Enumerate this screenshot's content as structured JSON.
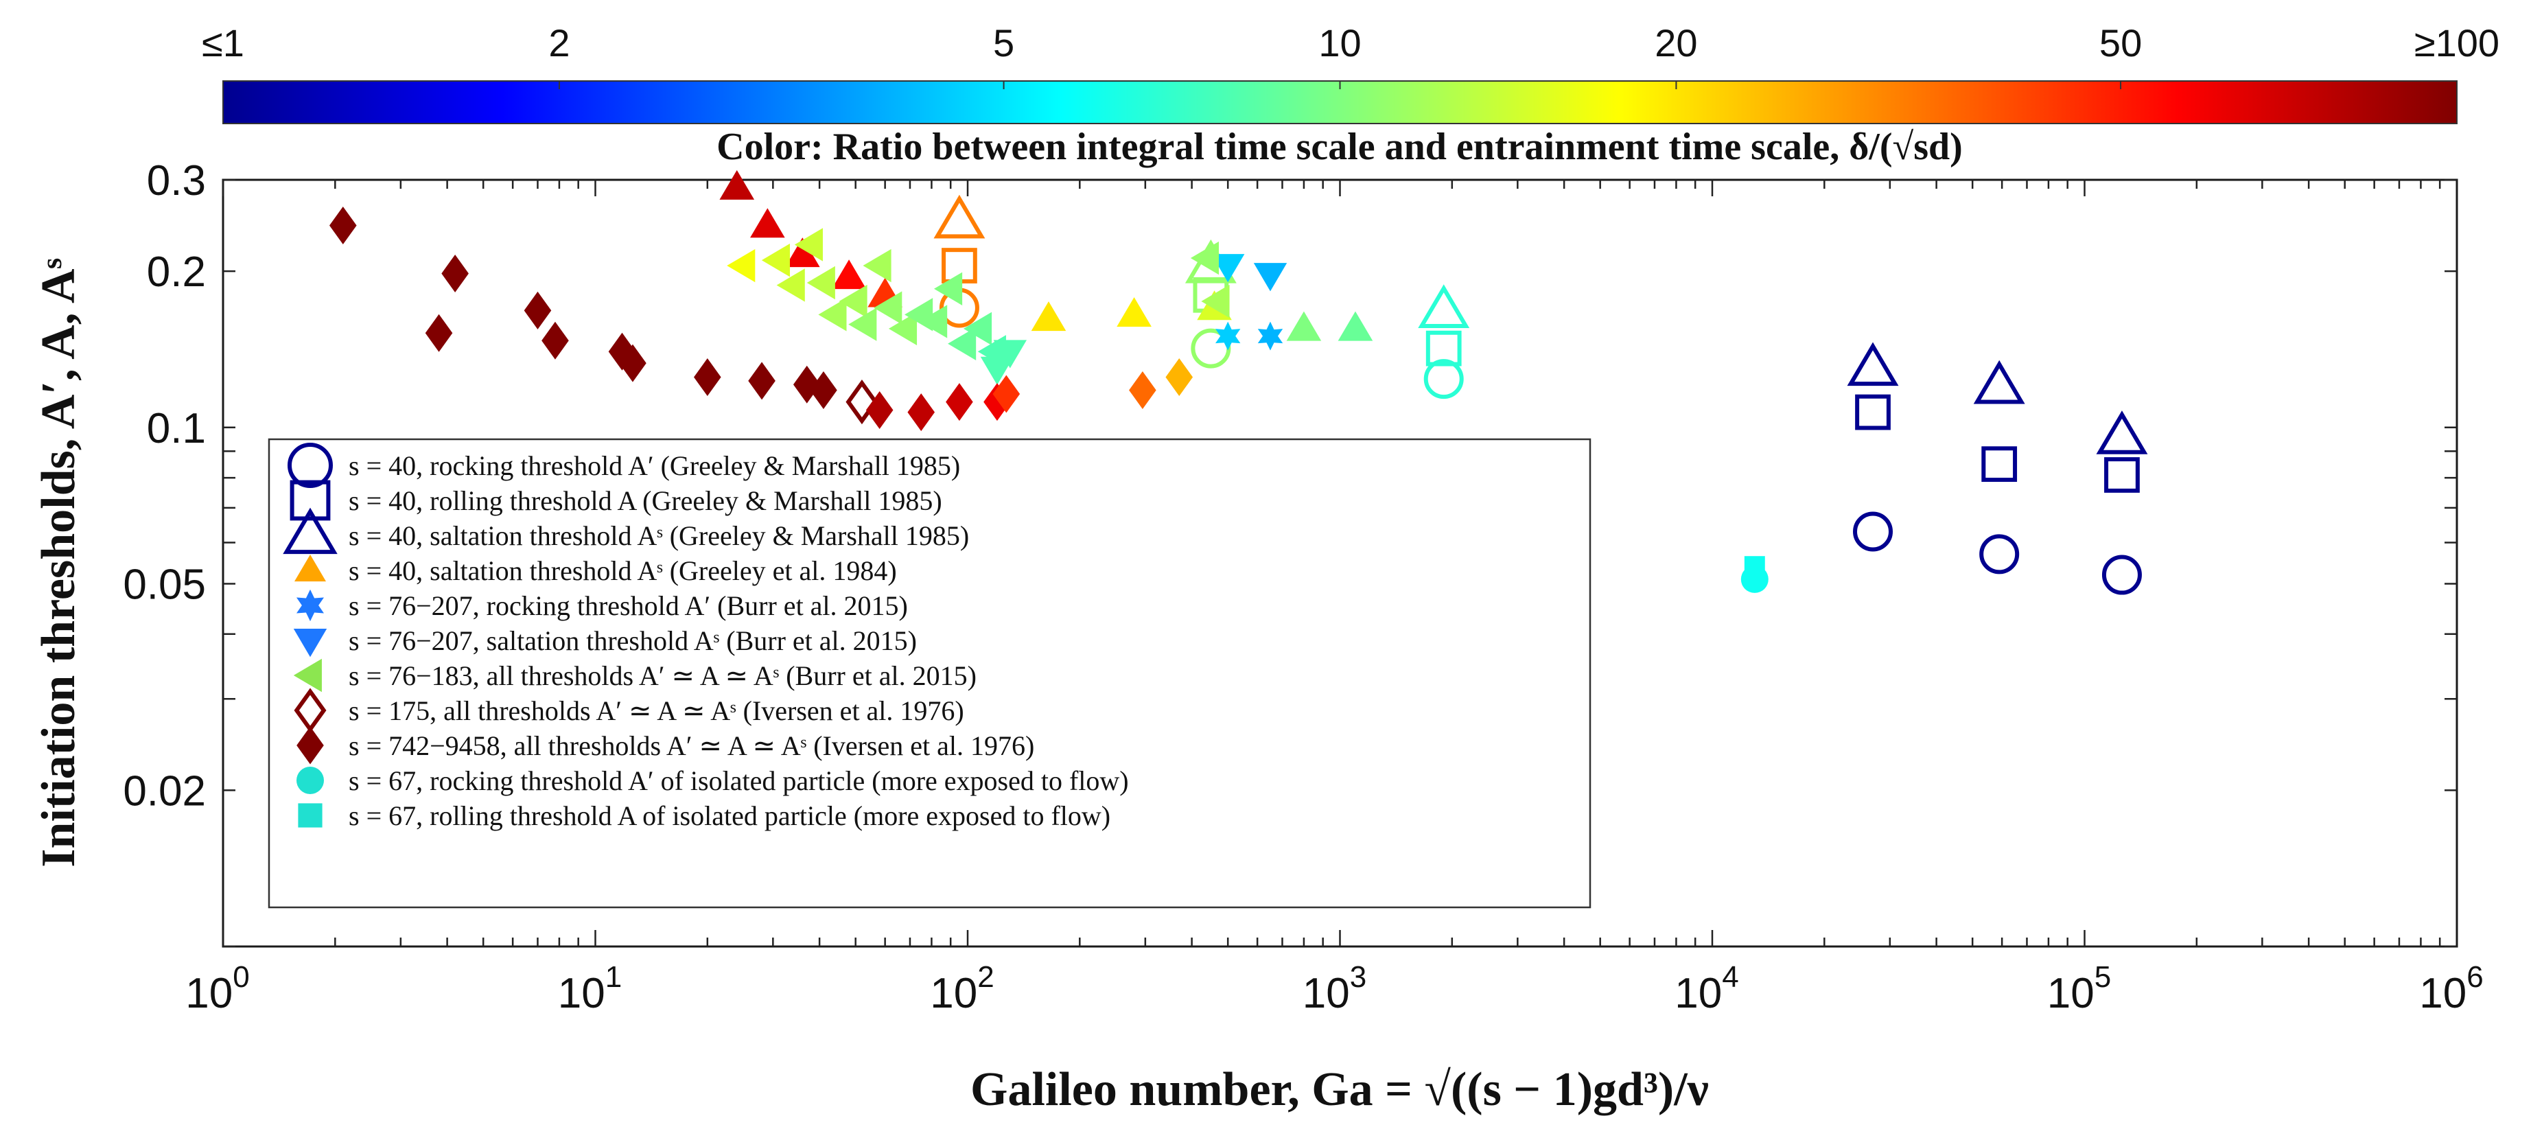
{
  "chart_data": {
    "type": "scatter",
    "x_scale": "log",
    "y_scale": "log",
    "xlim": [
      1,
      1000000
    ],
    "ylim": [
      0.01,
      0.3
    ],
    "xlabel": "Galileo number, Ga = √((s − 1)gd³)/ν",
    "ylabel": "Initiation thresholds, A′, A, Aˢ",
    "x_ticks": [
      {
        "value": 1,
        "base": "10",
        "exp": "0"
      },
      {
        "value": 10,
        "base": "10",
        "exp": "1"
      },
      {
        "value": 100,
        "base": "10",
        "exp": "2"
      },
      {
        "value": 1000,
        "base": "10",
        "exp": "3"
      },
      {
        "value": 10000,
        "base": "10",
        "exp": "4"
      },
      {
        "value": 100000,
        "base": "10",
        "exp": "5"
      },
      {
        "value": 1000000,
        "base": "10",
        "exp": "6"
      }
    ],
    "y_ticks": [
      {
        "value": 0.02,
        "label": "0.02"
      },
      {
        "value": 0.05,
        "label": "0.05"
      },
      {
        "value": 0.1,
        "label": "0.1"
      },
      {
        "value": 0.2,
        "label": "0.2"
      },
      {
        "value": 0.3,
        "label": "0.3"
      }
    ],
    "colorbar": {
      "title": "Color: Ratio between integral time scale and entrainment time scale, δ/(√sd)",
      "scale": "log",
      "range": [
        1,
        100
      ],
      "ticks": [
        {
          "value": 1,
          "label": "≤1"
        },
        {
          "value": 2,
          "label": "2"
        },
        {
          "value": 5,
          "label": "5"
        },
        {
          "value": 10,
          "label": "10"
        },
        {
          "value": 20,
          "label": "20"
        },
        {
          "value": 50,
          "label": "50"
        },
        {
          "value": 100,
          "label": "≥100"
        }
      ]
    },
    "series": [
      {
        "name": "s = 40, rocking threshold A′ (Greeley & Marshall 1985)",
        "marker": "circle",
        "filled": false,
        "color": "#00008F",
        "points": [
          {
            "x": 27000,
            "y": 0.063,
            "c": 1
          },
          {
            "x": 59000,
            "y": 0.057,
            "c": 1
          },
          {
            "x": 126000,
            "y": 0.052,
            "c": 1
          },
          {
            "x": 1900,
            "y": 0.124,
            "c": 6.8
          },
          {
            "x": 450,
            "y": 0.142,
            "c": 11
          },
          {
            "x": 95,
            "y": 0.17,
            "c": 32
          }
        ]
      },
      {
        "name": "s = 40, rolling threshold A (Greeley & Marshall 1985)",
        "marker": "square",
        "filled": false,
        "color": "#00008F",
        "points": [
          {
            "x": 27000,
            "y": 0.107,
            "c": 1
          },
          {
            "x": 59000,
            "y": 0.085,
            "c": 1
          },
          {
            "x": 126000,
            "y": 0.081,
            "c": 1
          },
          {
            "x": 1900,
            "y": 0.142,
            "c": 6.8
          },
          {
            "x": 450,
            "y": 0.18,
            "c": 11
          },
          {
            "x": 95,
            "y": 0.205,
            "c": 32
          }
        ]
      },
      {
        "name": "s = 40, saltation threshold Aˢ (Greeley & Marshall 1985)",
        "marker": "triangle-up",
        "filled": false,
        "color": "#00008F",
        "points": [
          {
            "x": 27000,
            "y": 0.13,
            "c": 1
          },
          {
            "x": 59000,
            "y": 0.12,
            "c": 1
          },
          {
            "x": 126000,
            "y": 0.096,
            "c": 1
          },
          {
            "x": 1900,
            "y": 0.168,
            "c": 6.8
          },
          {
            "x": 450,
            "y": 0.205,
            "c": 11
          },
          {
            "x": 95,
            "y": 0.25,
            "c": 32
          }
        ]
      },
      {
        "name": "s = 40, saltation threshold Aˢ (Greeley et al. 1984)",
        "marker": "triangle-up",
        "filled": true,
        "color": "#FFA500",
        "points": [
          {
            "x": 24,
            "y": 0.29,
            "c": 75
          },
          {
            "x": 29,
            "y": 0.245,
            "c": 65
          },
          {
            "x": 36,
            "y": 0.215,
            "c": 60
          },
          {
            "x": 48,
            "y": 0.195,
            "c": 55
          },
          {
            "x": 60,
            "y": 0.18,
            "c": 45
          },
          {
            "x": 165,
            "y": 0.162,
            "c": 20
          },
          {
            "x": 280,
            "y": 0.165,
            "c": 19
          },
          {
            "x": 460,
            "y": 0.17,
            "c": 15
          },
          {
            "x": 800,
            "y": 0.155,
            "c": 10
          },
          {
            "x": 1100,
            "y": 0.155,
            "c": 9
          }
        ]
      },
      {
        "name": "s = 76−207, rocking threshold A′ (Burr et al. 2015)",
        "marker": "star",
        "filled": true,
        "color": "#1E78FF",
        "points": [
          {
            "x": 500,
            "y": 0.15,
            "c": 4.5
          },
          {
            "x": 650,
            "y": 0.15,
            "c": 4
          }
        ]
      },
      {
        "name": "s = 76−207, saltation threshold Aˢ (Burr et al. 2015)",
        "marker": "triangle-down",
        "filled": true,
        "color": "#1E78FF",
        "points": [
          {
            "x": 500,
            "y": 0.205,
            "c": 4.5
          },
          {
            "x": 650,
            "y": 0.197,
            "c": 4
          },
          {
            "x": 130,
            "y": 0.14,
            "c": 8
          },
          {
            "x": 120,
            "y": 0.13,
            "c": 8
          }
        ]
      },
      {
        "name": "s = 76−183, all thresholds A′ ≃ A ≃ Aˢ (Burr et al. 2015)",
        "marker": "triangle-left",
        "filled": true,
        "color": "#8CE650",
        "points": [
          {
            "x": 25,
            "y": 0.205,
            "c": 17
          },
          {
            "x": 31,
            "y": 0.21,
            "c": 15
          },
          {
            "x": 38,
            "y": 0.225,
            "c": 14
          },
          {
            "x": 34,
            "y": 0.188,
            "c": 14
          },
          {
            "x": 41,
            "y": 0.19,
            "c": 13
          },
          {
            "x": 44,
            "y": 0.165,
            "c": 12
          },
          {
            "x": 50,
            "y": 0.175,
            "c": 12
          },
          {
            "x": 53,
            "y": 0.158,
            "c": 11
          },
          {
            "x": 58,
            "y": 0.205,
            "c": 12
          },
          {
            "x": 62,
            "y": 0.17,
            "c": 11
          },
          {
            "x": 68,
            "y": 0.155,
            "c": 11
          },
          {
            "x": 75,
            "y": 0.165,
            "c": 10
          },
          {
            "x": 82,
            "y": 0.16,
            "c": 10
          },
          {
            "x": 90,
            "y": 0.185,
            "c": 10
          },
          {
            "x": 98,
            "y": 0.145,
            "c": 9
          },
          {
            "x": 108,
            "y": 0.155,
            "c": 9
          },
          {
            "x": 118,
            "y": 0.14,
            "c": 8
          },
          {
            "x": 440,
            "y": 0.212,
            "c": 11
          },
          {
            "x": 470,
            "y": 0.175,
            "c": 12
          }
        ]
      },
      {
        "name": "s = 175, all thresholds A′ ≃ A ≃ Aˢ (Iversen et al. 1976)",
        "marker": "diamond",
        "filled": false,
        "color": "#7F0000",
        "points": [
          {
            "x": 52,
            "y": 0.112,
            "c": 100
          }
        ]
      },
      {
        "name": "s = 742−9458, all thresholds A′ ≃ A ≃ Aˢ (Iversen et al. 1976)",
        "marker": "diamond",
        "filled": true,
        "color": "#7F0000",
        "points": [
          {
            "x": 2.1,
            "y": 0.245,
            "c": 100
          },
          {
            "x": 3.8,
            "y": 0.152,
            "c": 100
          },
          {
            "x": 4.2,
            "y": 0.198,
            "c": 100
          },
          {
            "x": 7,
            "y": 0.168,
            "c": 100
          },
          {
            "x": 7.8,
            "y": 0.147,
            "c": 100
          },
          {
            "x": 11.8,
            "y": 0.14,
            "c": 100
          },
          {
            "x": 12.6,
            "y": 0.133,
            "c": 100
          },
          {
            "x": 20,
            "y": 0.125,
            "c": 100
          },
          {
            "x": 28,
            "y": 0.123,
            "c": 100
          },
          {
            "x": 37,
            "y": 0.121,
            "c": 100
          },
          {
            "x": 41,
            "y": 0.118,
            "c": 100
          },
          {
            "x": 58,
            "y": 0.108,
            "c": 80
          },
          {
            "x": 75,
            "y": 0.107,
            "c": 75
          },
          {
            "x": 95,
            "y": 0.112,
            "c": 70
          },
          {
            "x": 120,
            "y": 0.112,
            "c": 60
          },
          {
            "x": 127,
            "y": 0.116,
            "c": 45
          },
          {
            "x": 295,
            "y": 0.118,
            "c": 35
          },
          {
            "x": 370,
            "y": 0.125,
            "c": 25
          }
        ]
      },
      {
        "name": "s = 67, rocking threshold A′ of isolated particle (more exposed to flow)",
        "marker": "circle",
        "filled": true,
        "color": "#20E0D0",
        "points": [
          {
            "x": 13000,
            "y": 0.051,
            "c": 6
          }
        ]
      },
      {
        "name": "s = 67, rolling threshold A of isolated particle (more exposed to flow)",
        "marker": "square",
        "filled": true,
        "color": "#20E0D0",
        "points": [
          {
            "x": 13000,
            "y": 0.054,
            "c": 6
          }
        ]
      }
    ]
  }
}
